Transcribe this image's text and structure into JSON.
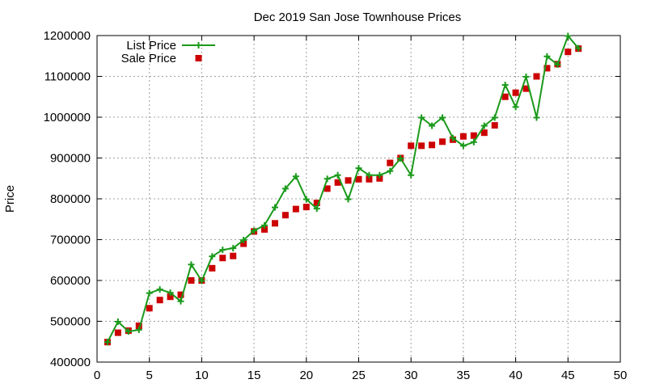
{
  "chart_data": {
    "type": "line",
    "title": "Dec 2019 San Jose Townhouse Prices",
    "xlabel": "",
    "ylabel": "Price",
    "xlim": [
      0,
      50
    ],
    "ylim": [
      400000,
      1200000
    ],
    "xticks": [
      0,
      5,
      10,
      15,
      20,
      25,
      30,
      35,
      40,
      45,
      50
    ],
    "yticks": [
      400000,
      500000,
      600000,
      700000,
      800000,
      900000,
      1000000,
      1100000,
      1200000
    ],
    "grid": true,
    "legend_position": "top-left",
    "series": [
      {
        "name": "List Price",
        "style": "line+points",
        "marker": "plus",
        "color": "#1a9a1a",
        "x": [
          1,
          2,
          3,
          4,
          5,
          6,
          7,
          8,
          9,
          10,
          11,
          12,
          13,
          14,
          15,
          16,
          17,
          18,
          19,
          20,
          21,
          22,
          23,
          24,
          25,
          26,
          27,
          28,
          29,
          30,
          31,
          32,
          33,
          34,
          35,
          36,
          37,
          38,
          39,
          40,
          41,
          42,
          43,
          44,
          45,
          46
        ],
        "y": [
          449000,
          499000,
          475000,
          479000,
          569000,
          578000,
          570000,
          549000,
          639000,
          599000,
          659000,
          675000,
          679000,
          699000,
          722000,
          735000,
          779000,
          825000,
          855000,
          799000,
          776000,
          849000,
          858000,
          799000,
          875000,
          858000,
          858000,
          868000,
          899000,
          858000,
          999000,
          979000,
          999000,
          949000,
          930000,
          939000,
          979000,
          999000,
          1079000,
          1025000,
          1099000,
          999000,
          1149000,
          1129000,
          1199000,
          1169000
        ]
      },
      {
        "name": "Sale Price",
        "style": "points",
        "marker": "square",
        "color": "#cc0000",
        "x": [
          1,
          2,
          3,
          4,
          5,
          6,
          7,
          8,
          9,
          10,
          11,
          12,
          13,
          14,
          15,
          16,
          17,
          18,
          19,
          20,
          21,
          22,
          23,
          24,
          25,
          26,
          27,
          28,
          29,
          30,
          31,
          32,
          33,
          34,
          35,
          36,
          37,
          38,
          39,
          40,
          41,
          42,
          43,
          44,
          45,
          46
        ],
        "y": [
          449000,
          472000,
          477000,
          489000,
          532000,
          552000,
          560000,
          565000,
          600000,
          600000,
          630000,
          655000,
          660000,
          690000,
          720000,
          725000,
          740000,
          760000,
          775000,
          780000,
          790000,
          825000,
          840000,
          845000,
          848000,
          848000,
          850000,
          888000,
          900000,
          930000,
          930000,
          932000,
          940000,
          945000,
          953000,
          955000,
          962000,
          980000,
          1050000,
          1060000,
          1070000,
          1100000,
          1120000,
          1130000,
          1160000,
          1168000
        ]
      }
    ]
  }
}
